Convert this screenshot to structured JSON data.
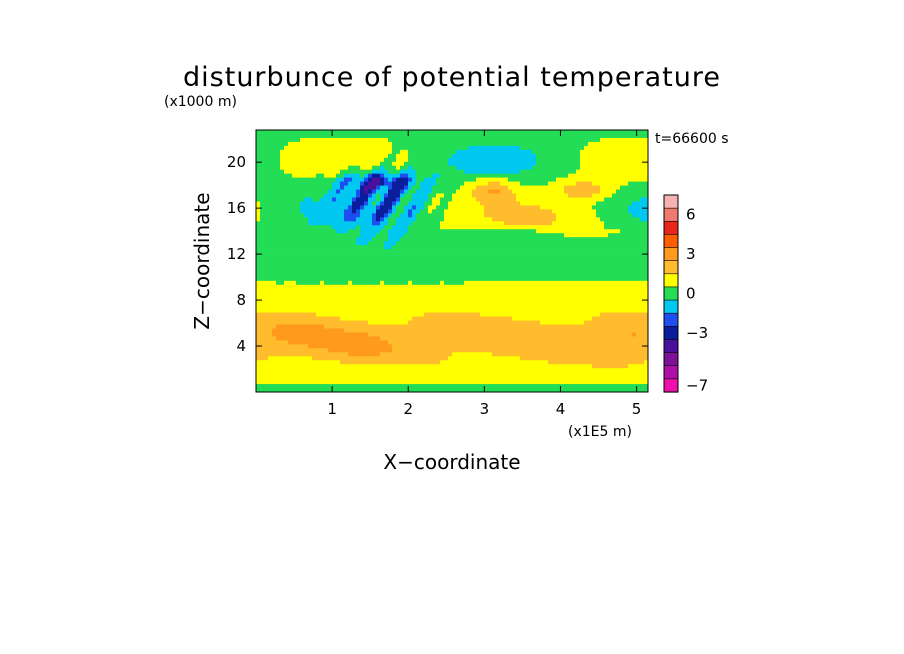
{
  "chart_data": {
    "type": "heatmap",
    "title": "disturbunce of potential temperature",
    "ylabel_units": "(x1000 m)",
    "xlabel_units": "(x1E5 m)",
    "xlabel": "X−coordinate",
    "ylabel": "Z−coordinate",
    "time_label": "t=66600 s",
    "xlim": [
      0,
      5.15
    ],
    "ylim": [
      0,
      22.8
    ],
    "xticks": [
      "1",
      "2",
      "3",
      "4",
      "5"
    ],
    "xtick_values": [
      1,
      2,
      3,
      4,
      5
    ],
    "yticks": [
      "4",
      "8",
      "12",
      "16",
      "20"
    ],
    "ytick_values": [
      4,
      8,
      12,
      16,
      20
    ],
    "colorbar": {
      "levels": [
        {
          "value": 7,
          "color": "#f4b3b0"
        },
        {
          "value": 6,
          "color": "#f07a6e"
        },
        {
          "value": 5,
          "color": "#e8261b"
        },
        {
          "value": 4,
          "color": "#ff5f00"
        },
        {
          "value": 3,
          "color": "#ff9a1c"
        },
        {
          "value": 2,
          "color": "#ffbd2e"
        },
        {
          "value": 1,
          "color": "#ffff00"
        },
        {
          "value": 0,
          "color": "#22dd55"
        },
        {
          "value": -1,
          "color": "#00c8f0"
        },
        {
          "value": -2,
          "color": "#1e4ef0"
        },
        {
          "value": -3,
          "color": "#0a1e9c"
        },
        {
          "value": -4,
          "color": "#4a109c"
        },
        {
          "value": -5,
          "color": "#7d1296"
        },
        {
          "value": -6,
          "color": "#b00ea8"
        },
        {
          "value": -7,
          "color": "#ee10a8"
        }
      ],
      "tick_labels": [
        "6",
        "3",
        "0",
        "−3",
        "−7"
      ],
      "tick_values": [
        6,
        3,
        0,
        -3,
        -7
      ]
    }
  }
}
